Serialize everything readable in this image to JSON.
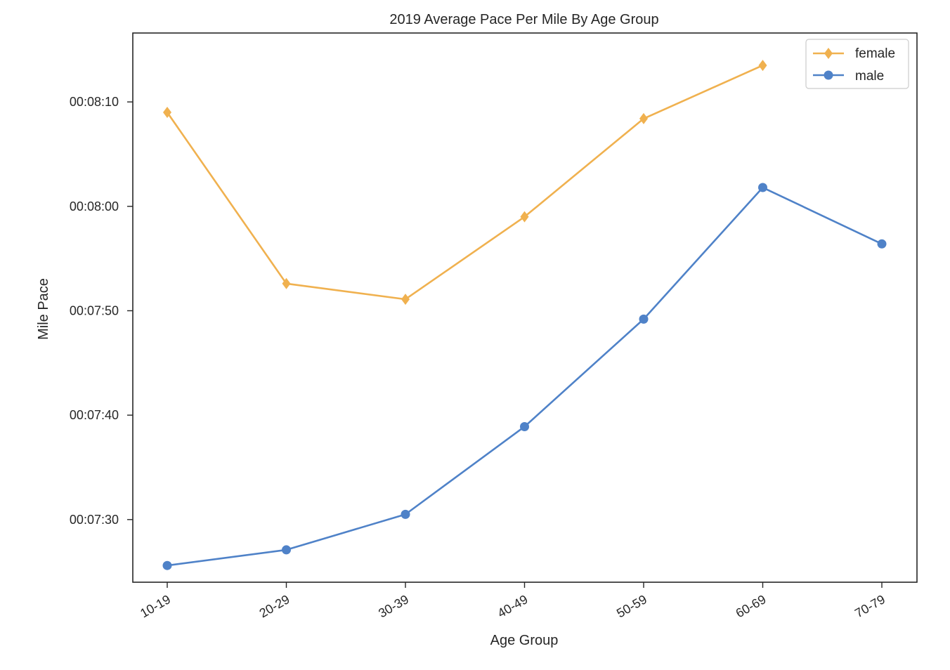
{
  "chart_data": {
    "type": "line",
    "title": "2019 Average Pace Per Mile By Age Group",
    "xlabel": "Age Group",
    "ylabel": "Mile Pace",
    "categories": [
      "10-19",
      "20-29",
      "30-39",
      "40-49",
      "50-59",
      "60-69",
      "70-79"
    ],
    "y_unit": "seconds",
    "ylim": [
      444,
      496.6
    ],
    "y_ticks": [
      450,
      460,
      470,
      480,
      490
    ],
    "y_tick_labels": [
      "00:07:30",
      "00:07:40",
      "00:07:50",
      "00:08:00",
      "00:08:10"
    ],
    "grid": false,
    "legend_position": "top-right",
    "series": [
      {
        "name": "female",
        "color": "#f0b14f",
        "marker": "diamond",
        "values": [
          489,
          472.6,
          471.1,
          479,
          488.4,
          493.5,
          null
        ]
      },
      {
        "name": "male",
        "color": "#4f82c8",
        "marker": "circle",
        "values": [
          445.6,
          447.1,
          450.5,
          458.9,
          469.2,
          481.8,
          476.4
        ]
      }
    ]
  }
}
